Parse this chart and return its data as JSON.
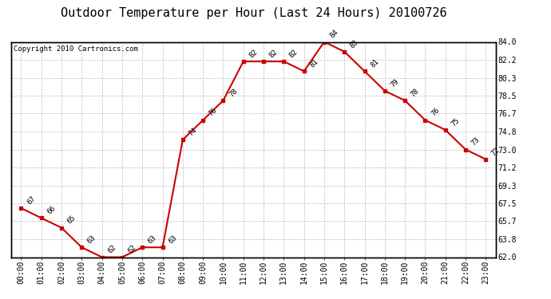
{
  "title": "Outdoor Temperature per Hour (Last 24 Hours) 20100726",
  "copyright": "Copyright 2010 Cartronics.com",
  "hours": [
    0,
    1,
    2,
    3,
    4,
    5,
    6,
    7,
    8,
    9,
    10,
    11,
    12,
    13,
    14,
    15,
    16,
    17,
    18,
    19,
    20,
    21,
    22,
    23
  ],
  "temps": [
    67,
    66,
    65,
    63,
    62,
    62,
    63,
    63,
    74,
    76,
    78,
    82,
    82,
    82,
    81,
    84,
    83,
    81,
    79,
    78,
    76,
    75,
    73,
    72
  ],
  "xlabels": [
    "00:00",
    "01:00",
    "02:00",
    "03:00",
    "04:00",
    "05:00",
    "06:00",
    "07:00",
    "08:00",
    "09:00",
    "10:00",
    "11:00",
    "12:00",
    "13:00",
    "14:00",
    "15:00",
    "16:00",
    "17:00",
    "18:00",
    "19:00",
    "20:00",
    "21:00",
    "22:00",
    "23:00"
  ],
  "ymin": 62.0,
  "ymax": 84.0,
  "yticks": [
    62.0,
    63.8,
    65.7,
    67.5,
    69.3,
    71.2,
    73.0,
    74.8,
    76.7,
    78.5,
    80.3,
    82.2,
    84.0
  ],
  "line_color": "#cc0000",
  "marker_color": "#cc0000",
  "bg_color": "#ffffff",
  "grid_color": "#bbbbbb",
  "title_fontsize": 11,
  "label_fontsize": 7,
  "annotation_fontsize": 6.5,
  "copyright_fontsize": 6.5
}
